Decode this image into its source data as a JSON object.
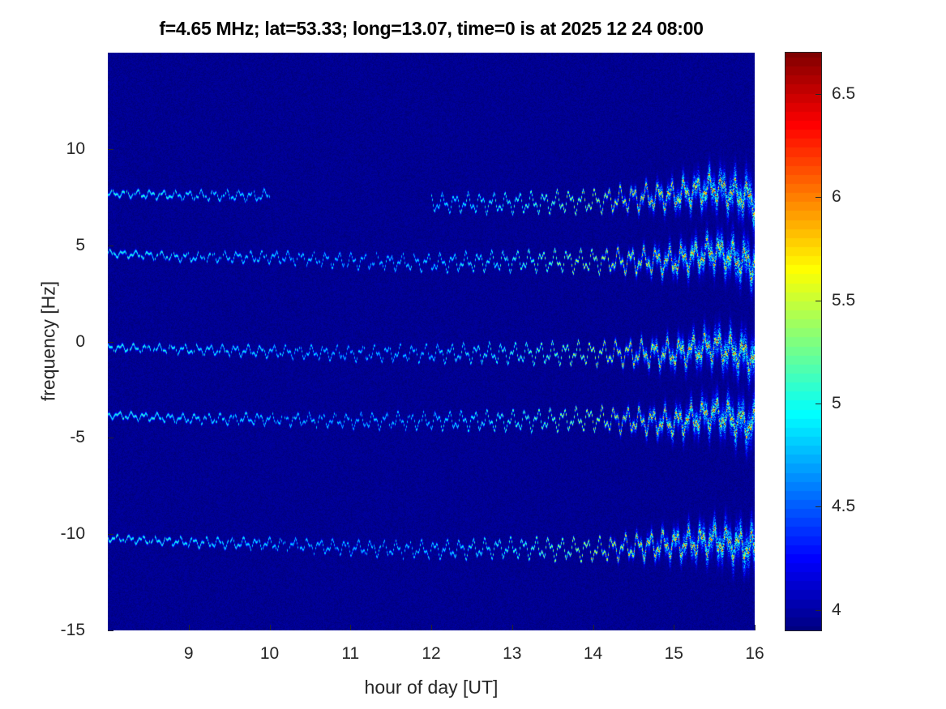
{
  "chart_data": {
    "type": "heatmap",
    "title": "f=4.65 MHz;  lat=53.33; long=13.07, time=0 is at 2025 12 24 08:00",
    "xlabel": "hour of day [UT]",
    "ylabel": "frequency [Hz]",
    "xlim": [
      8,
      16
    ],
    "ylim": [
      -15,
      15
    ],
    "xticks": [
      "9",
      "10",
      "11",
      "12",
      "13",
      "14",
      "15",
      "16"
    ],
    "yticks": [
      "10",
      "5",
      "0",
      "-5",
      "-10",
      "-15"
    ],
    "colormap": "jet",
    "clim": [
      3.9,
      6.7
    ],
    "colorbar_ticks": [
      "6.5",
      "6",
      "5.5",
      "5",
      "4.5",
      "4"
    ],
    "background_value": 3.95,
    "trace_hours": [
      8,
      9,
      10,
      11,
      12,
      13,
      14,
      15,
      15.5,
      16
    ],
    "traces": [
      {
        "freq": [
          7.7,
          7.6,
          7.6,
          7.5,
          7.2,
          7.2,
          7.3,
          7.6,
          8.0,
          7.4
        ],
        "gap": [
          10,
          12
        ]
      },
      {
        "freq": [
          4.6,
          4.4,
          4.4,
          4.2,
          4.1,
          4.2,
          4.2,
          4.2,
          4.7,
          4.0
        ]
      },
      {
        "freq": [
          -0.3,
          -0.4,
          -0.5,
          -0.6,
          -0.6,
          -0.6,
          -0.6,
          -0.6,
          -0.2,
          -0.8
        ]
      },
      {
        "freq": [
          -3.8,
          -4.0,
          -4.0,
          -4.1,
          -4.1,
          -4.1,
          -4.0,
          -4.2,
          -3.7,
          -4.4
        ]
      },
      {
        "freq": [
          -10.2,
          -10.4,
          -10.5,
          -10.7,
          -10.8,
          -10.7,
          -10.8,
          -10.5,
          -10.3,
          -10.7
        ]
      }
    ],
    "peak_intensity": [
      5.3,
      5.2,
      5.1,
      5.0,
      5.1,
      5.4,
      5.9,
      6.5,
      6.7,
      6.7
    ]
  }
}
